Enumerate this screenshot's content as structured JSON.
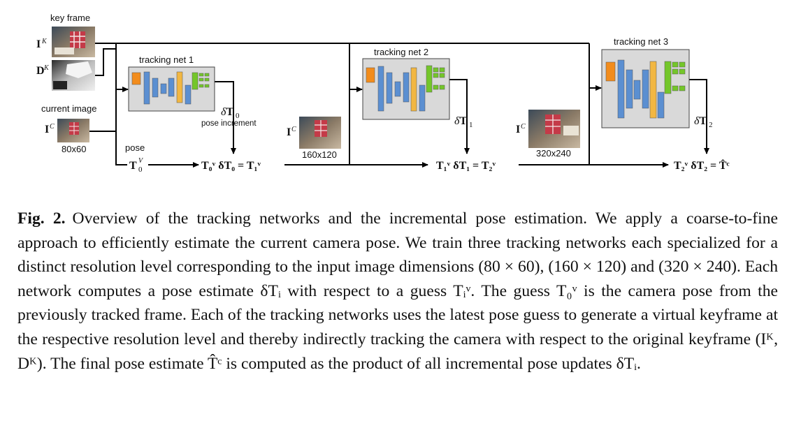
{
  "figure": {
    "labels": {
      "key_frame": "key frame",
      "current_image": "current image",
      "pose": "pose",
      "pose_increment": "pose increment",
      "res1": "80x60",
      "res2": "160x120",
      "res3": "320x240"
    },
    "nets": [
      {
        "title": "tracking net 1",
        "delta": "δT",
        "delta_sub": "0"
      },
      {
        "title": "tracking net 2",
        "delta": "δT",
        "delta_sub": "1"
      },
      {
        "title": "tracking net 3",
        "delta": "δT",
        "delta_sub": "2"
      }
    ],
    "inputs": {
      "ik": "I",
      "ik_sup": "K",
      "dk": "D",
      "dk_sup": "K",
      "ic": "I",
      "ic_sup": "C"
    },
    "equations": {
      "t0": "T",
      "t0_sub": "0",
      "t0_sup": "V",
      "eq1": "T₀ᵛ δT₀ = T₁ᵛ",
      "eq2": "T₁ᵛ δT₁ = T₂ᵛ",
      "eq3": "T₂ᵛ δT₂ = T̂ᶜ"
    },
    "colors": {
      "orange": "#f28c1c",
      "blue": "#5b8fd1",
      "yellow": "#f2b742",
      "green": "#74c62a",
      "net_bg": "#d9d9d9"
    }
  },
  "caption": {
    "label": "Fig. 2.",
    "text": "Overview of the tracking networks and the incremental pose estimation. We apply a coarse-to-fine approach to efficiently estimate the current camera pose. We train three tracking networks each specialized for a distinct resolution level corresponding to the input image dimensions (80 × 60), (160 × 120) and (320 × 240). Each network computes a pose estimate δTᵢ with respect to a guess Tᵢᵛ. The guess T₀ᵛ is the camera pose from the previously tracked frame. Each of the tracking networks uses the latest pose guess to generate a virtual keyframe at the respective resolution level and thereby indirectly tracking the camera with respect to the original keyframe (Iᴷ, Dᴷ). The final pose estimate T̂ᶜ is computed as the product of all incremental pose updates δTᵢ."
  }
}
